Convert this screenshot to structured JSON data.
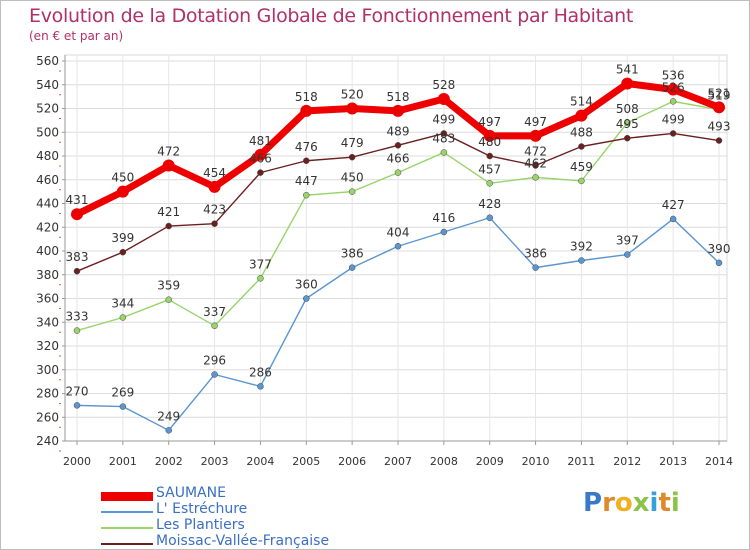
{
  "header": {
    "title": "Evolution de la Dotation Globale de Fonctionnement par Habitant",
    "subtitle": "(en € et par an)"
  },
  "logo": {
    "text": "Proxiti",
    "letters": [
      {
        "ch": "P",
        "color": "#3a78c8"
      },
      {
        "ch": "r",
        "color": "#e0892a"
      },
      {
        "ch": "o",
        "color": "#f0b020"
      },
      {
        "ch": "x",
        "color": "#8bc34a"
      },
      {
        "ch": "i",
        "color": "#3aa0d8"
      },
      {
        "ch": "t",
        "color": "#e0892a"
      },
      {
        "ch": "i",
        "color": "#8bc34a"
      }
    ]
  },
  "chart_data": {
    "type": "line",
    "title": "Evolution de la Dotation Globale de Fonctionnement par Habitant",
    "subtitle": "(en € et par an)",
    "x": [
      "2000",
      "2001",
      "2002",
      "2003",
      "2004",
      "2005",
      "2006",
      "2007",
      "2008",
      "2009",
      "2010",
      "2011",
      "2012",
      "2013",
      "2014"
    ],
    "ylim": [
      240,
      560
    ],
    "yticks": [
      240,
      260,
      280,
      300,
      320,
      340,
      360,
      380,
      400,
      420,
      440,
      460,
      480,
      500,
      520,
      540,
      560
    ],
    "grid": true,
    "legend_position": "bottom-left",
    "series": [
      {
        "name": "L' Estréchure",
        "color": "#5b96d0",
        "values": [
          270,
          269,
          249,
          296,
          286,
          360,
          386,
          404,
          416,
          428,
          386,
          392,
          397,
          427,
          390
        ]
      },
      {
        "name": "Les Plantiers",
        "color": "#98d46a",
        "values": [
          333,
          344,
          359,
          337,
          377,
          447,
          450,
          466,
          483,
          457,
          462,
          459,
          508,
          526,
          519
        ]
      },
      {
        "name": "Moissac-Vallée-Française",
        "color": "#6b2020",
        "values": [
          383,
          399,
          421,
          423,
          466,
          476,
          479,
          489,
          499,
          480,
          472,
          488,
          495,
          499,
          493
        ]
      },
      {
        "name": "SAUMANE",
        "color": "#ee0000",
        "values": [
          431,
          450,
          472,
          454,
          481,
          518,
          520,
          518,
          528,
          497,
          497,
          514,
          541,
          536,
          521
        ]
      }
    ]
  }
}
